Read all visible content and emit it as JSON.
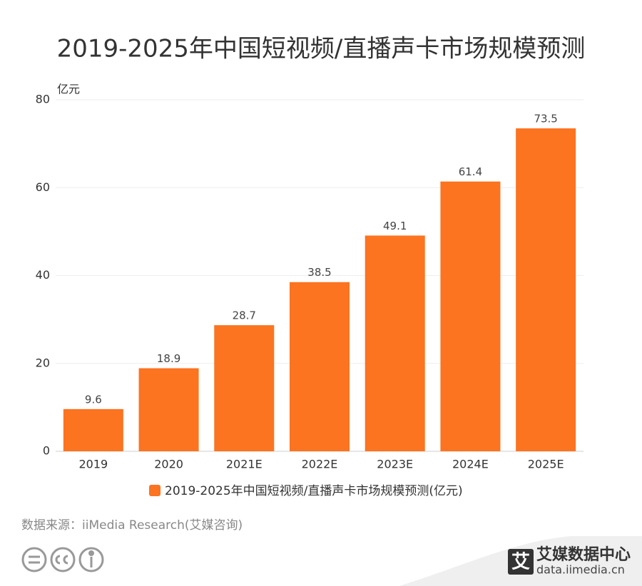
{
  "chart_data": {
    "type": "bar",
    "title": "2019-2025年中国短视频/直播声卡市场规模预测",
    "y_label": "亿元",
    "categories": [
      "2019",
      "2020",
      "2021E",
      "2022E",
      "2023E",
      "2024E",
      "2025E"
    ],
    "series": [
      {
        "name": "2019-2025年中国短视频/直播声卡市场规模预测(亿元)",
        "color": "#fc7320",
        "values": [
          9.6,
          18.9,
          28.7,
          38.5,
          49.1,
          61.4,
          73.5
        ]
      }
    ],
    "ylim": [
      0,
      80
    ],
    "yticks": [
      0,
      20,
      40,
      60,
      80
    ],
    "grid": true,
    "legend": "bottom"
  },
  "footer": {
    "source": "数据来源：iiMedia Research(艾媒咨询)",
    "logo_mark": "艾",
    "logo_name": "艾媒数据中心",
    "logo_url": "data.iimedia.cn"
  }
}
